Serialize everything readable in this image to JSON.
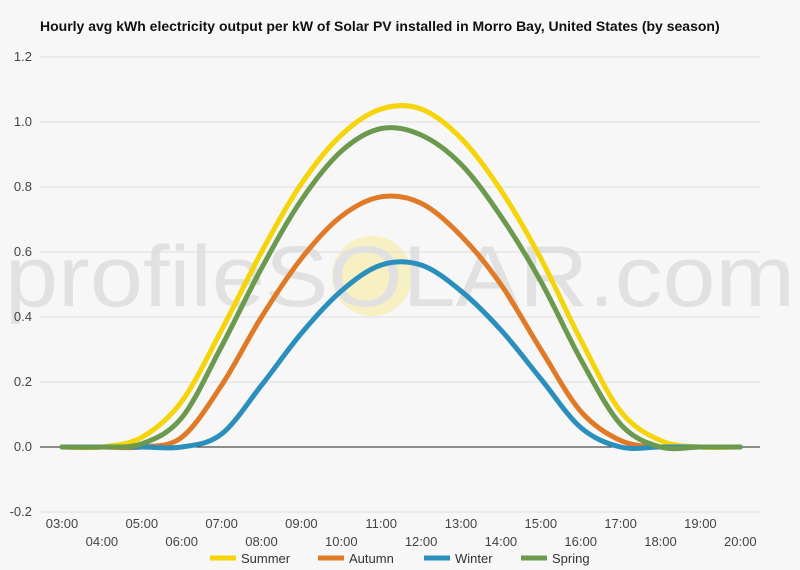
{
  "chart_data": {
    "type": "line",
    "title": "Hourly avg kWh electricity output per kW of Solar PV installed in Morro Bay, United States (by season)",
    "xlabel": "",
    "ylabel": "",
    "ylim": [
      -0.2,
      1.2
    ],
    "yticks": [
      -0.2,
      0.0,
      0.2,
      0.4,
      0.6,
      0.8,
      1.0,
      1.2
    ],
    "ytick_labels": [
      "-0.2",
      "0.0",
      "0.2",
      "0.4",
      "0.6",
      "0.8",
      "1.0",
      "1.2"
    ],
    "x_tick_labels": [
      "03:00",
      "04:00",
      "05:00",
      "06:00",
      "07:00",
      "08:00",
      "09:00",
      "10:00",
      "11:00",
      "12:00",
      "13:00",
      "14:00",
      "15:00",
      "16:00",
      "17:00",
      "18:00",
      "19:00",
      "20:00"
    ],
    "grid": true,
    "legend_position": "bottom",
    "watermark": "profileSOLAR.com",
    "series": [
      {
        "name": "Summer",
        "color": "#f5d40a",
        "values": [
          0.0,
          0.0,
          0.03,
          0.14,
          0.36,
          0.6,
          0.81,
          0.96,
          1.04,
          1.04,
          0.95,
          0.79,
          0.58,
          0.33,
          0.11,
          0.02,
          0.0,
          0.0
        ]
      },
      {
        "name": "Autumn",
        "color": "#e07a26",
        "values": [
          0.0,
          0.0,
          0.0,
          0.03,
          0.19,
          0.4,
          0.58,
          0.71,
          0.77,
          0.75,
          0.65,
          0.5,
          0.3,
          0.11,
          0.02,
          0.0,
          0.0,
          0.0
        ]
      },
      {
        "name": "Winter",
        "color": "#2a8fbd",
        "values": [
          0.0,
          0.0,
          0.0,
          0.0,
          0.04,
          0.19,
          0.35,
          0.48,
          0.56,
          0.56,
          0.48,
          0.36,
          0.21,
          0.06,
          0.0,
          0.0,
          0.0,
          0.0
        ]
      },
      {
        "name": "Spring",
        "color": "#6b9a4f",
        "values": [
          0.0,
          0.0,
          0.01,
          0.09,
          0.31,
          0.55,
          0.76,
          0.91,
          0.98,
          0.96,
          0.87,
          0.71,
          0.51,
          0.27,
          0.07,
          0.0,
          0.0,
          0.0
        ]
      }
    ]
  }
}
